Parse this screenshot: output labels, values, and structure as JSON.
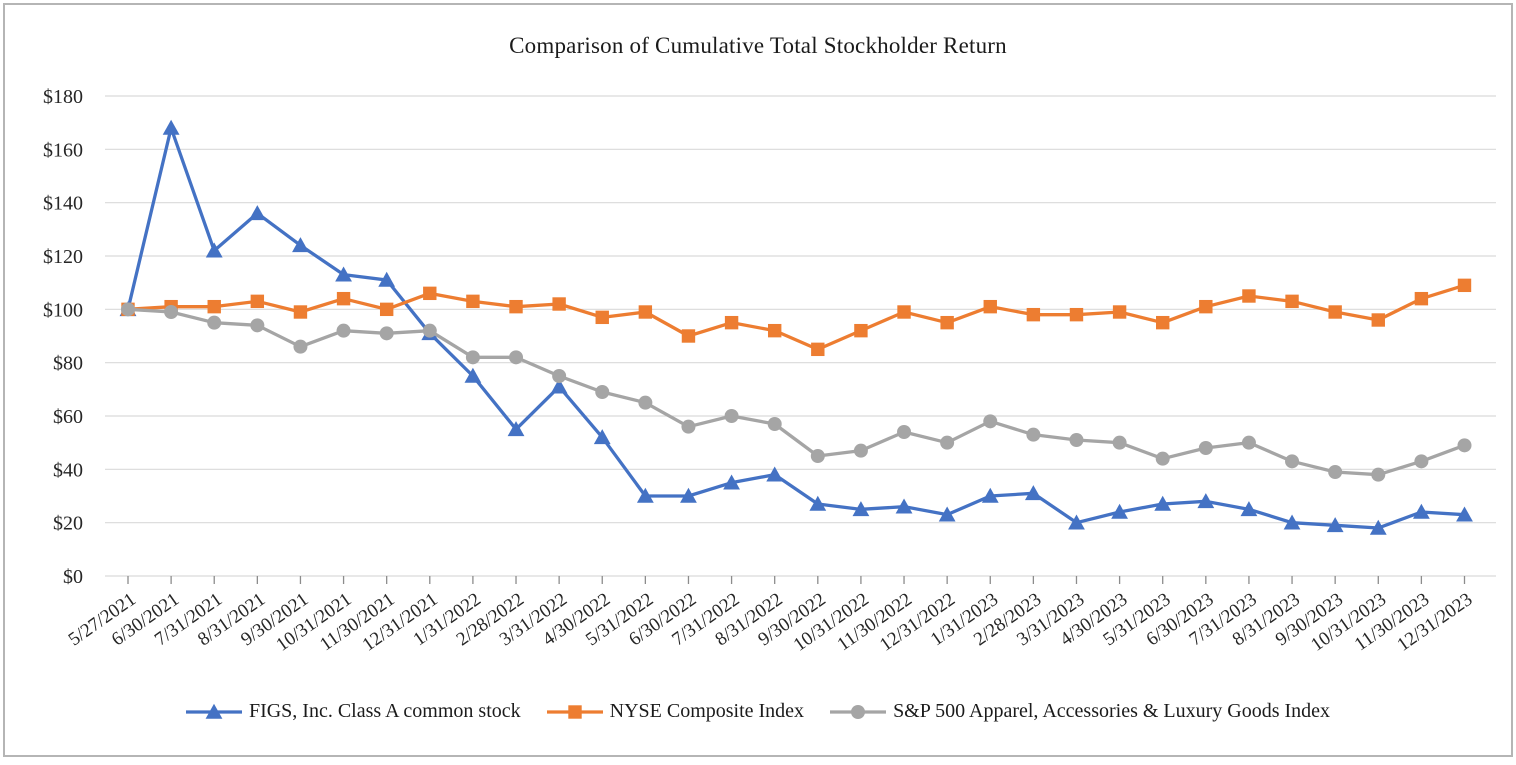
{
  "chart_data": {
    "type": "line",
    "title": "Comparison of Cumulative Total Stockholder Return",
    "categories": [
      "5/27/2021",
      "6/30/2021",
      "7/31/2021",
      "8/31/2021",
      "9/30/2021",
      "10/31/2021",
      "11/30/2021",
      "12/31/2021",
      "1/31/2022",
      "2/28/2022",
      "3/31/2022",
      "4/30/2022",
      "5/31/2022",
      "6/30/2022",
      "7/31/2022",
      "8/31/2022",
      "9/30/2022",
      "10/31/2022",
      "11/30/2022",
      "12/31/2022",
      "1/31/2023",
      "2/28/2023",
      "3/31/2023",
      "4/30/2023",
      "5/31/2023",
      "6/30/2023",
      "7/31/2023",
      "8/31/2023",
      "9/30/2023",
      "10/31/2023",
      "11/30/2023",
      "12/31/2023"
    ],
    "series": [
      {
        "name": "FIGS, Inc. Class A common stock",
        "marker": "triangle",
        "color": "#4472C4",
        "values": [
          100,
          168,
          122,
          136,
          124,
          113,
          111,
          91,
          75,
          55,
          71,
          52,
          30,
          30,
          35,
          38,
          27,
          25,
          26,
          23,
          30,
          31,
          20,
          24,
          27,
          28,
          25,
          20,
          19,
          18,
          24,
          23
        ]
      },
      {
        "name": "NYSE Composite Index",
        "marker": "square",
        "color": "#ED7D31",
        "values": [
          100,
          101,
          101,
          103,
          99,
          104,
          100,
          106,
          103,
          101,
          102,
          97,
          99,
          90,
          95,
          92,
          85,
          92,
          99,
          95,
          101,
          98,
          98,
          99,
          95,
          101,
          105,
          103,
          99,
          96,
          104,
          109
        ]
      },
      {
        "name": "S&P 500 Apparel, Accessories & Luxury Goods Index",
        "marker": "circle",
        "color": "#A5A5A5",
        "values": [
          100,
          99,
          95,
          94,
          86,
          92,
          91,
          92,
          82,
          82,
          75,
          69,
          65,
          56,
          60,
          57,
          45,
          47,
          54,
          50,
          58,
          53,
          51,
          50,
          44,
          48,
          50,
          43,
          39,
          38,
          43,
          49
        ]
      }
    ],
    "y_ticks": [
      {
        "v": 0,
        "label": "$0"
      },
      {
        "v": 20,
        "label": "$20"
      },
      {
        "v": 40,
        "label": "$40"
      },
      {
        "v": 60,
        "label": "$60"
      },
      {
        "v": 80,
        "label": "$80"
      },
      {
        "v": 100,
        "label": "$100"
      },
      {
        "v": 120,
        "label": "$120"
      },
      {
        "v": 140,
        "label": "$140"
      },
      {
        "v": 160,
        "label": "$160"
      },
      {
        "v": 180,
        "label": "$180"
      }
    ],
    "ylim": [
      0,
      180
    ],
    "grid": true,
    "legend_position": "bottom"
  },
  "colors": {
    "gridline": "#D9D9D9",
    "axis_tick": "#8C8C8C",
    "text": "#262626",
    "frame_border": "#B5B5B5"
  }
}
